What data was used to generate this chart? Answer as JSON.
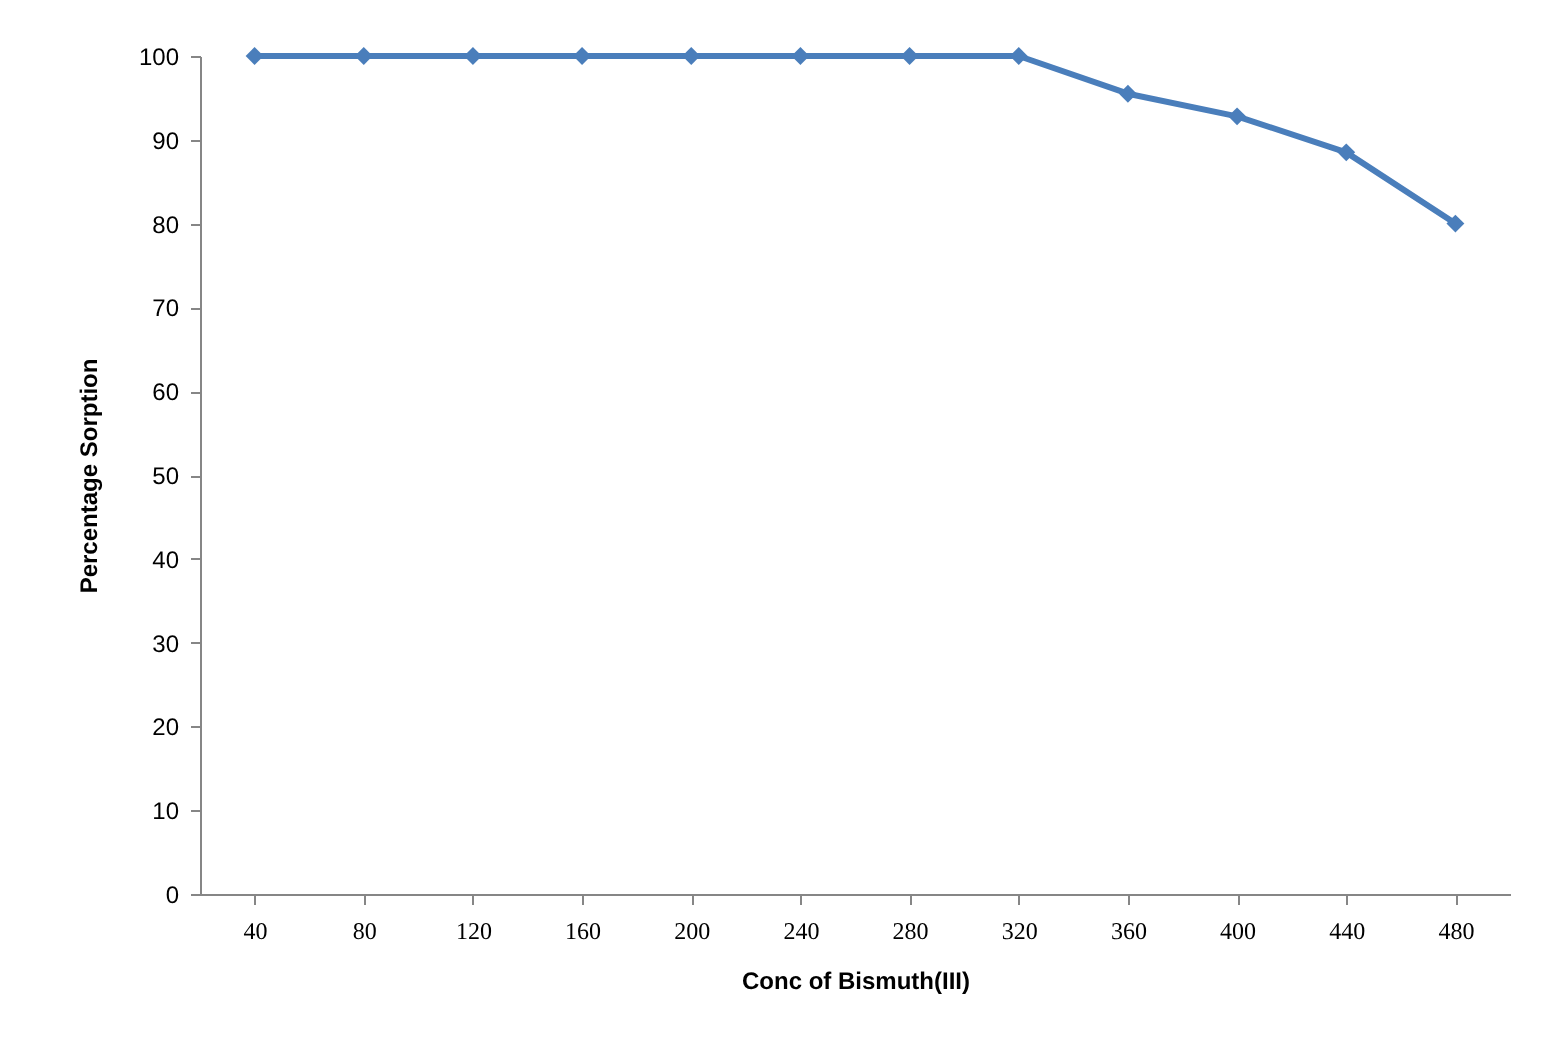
{
  "chart_data": {
    "type": "line",
    "xlabel": "Conc of Bismuth(III)",
    "ylabel": "Percentage Sorption",
    "categories": [
      "40",
      "80",
      "120",
      "160",
      "200",
      "240",
      "280",
      "320",
      "360",
      "400",
      "440",
      "480"
    ],
    "series": [
      {
        "color": "#4a7ebb",
        "values": [
          100,
          100,
          100,
          100,
          100,
          100,
          100,
          100,
          95.5,
          92.8,
          88.5,
          80.0
        ]
      }
    ],
    "ylim": [
      0,
      100
    ],
    "yticks": [
      0,
      10,
      20,
      30,
      40,
      50,
      60,
      70,
      80,
      90,
      100
    ],
    "grid": false,
    "legend": false,
    "marker": "diamond",
    "line_style": "solid"
  }
}
